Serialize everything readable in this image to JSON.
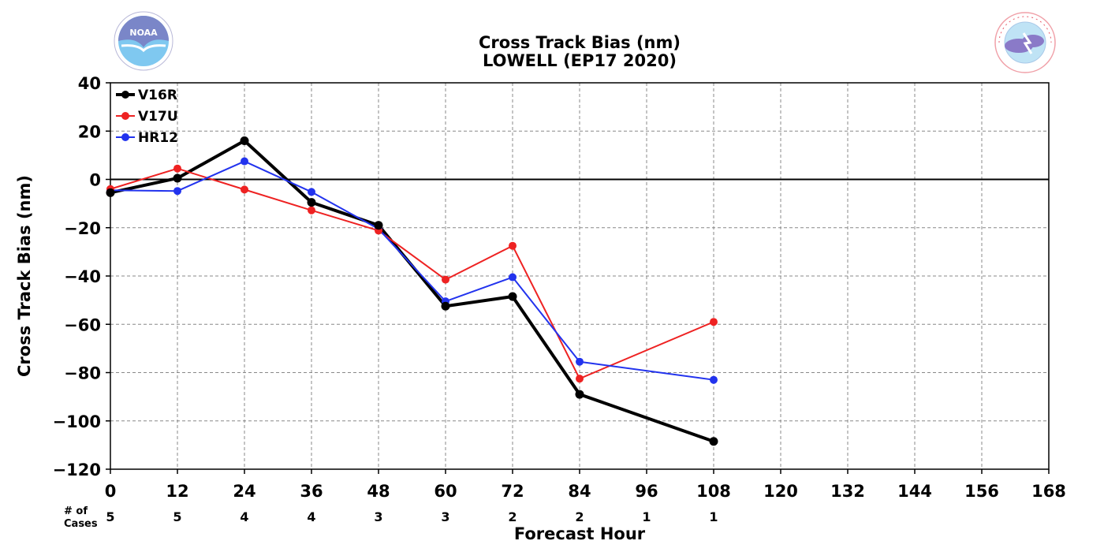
{
  "chart_data": {
    "type": "line",
    "title": "Cross Track Bias (nm)",
    "subtitle": "LOWELL (EP17 2020)",
    "xlabel": "Forecast Hour",
    "ylabel": "Cross Track Bias (nm)",
    "xlim": [
      0,
      168
    ],
    "ylim": [
      -120,
      40
    ],
    "x_ticks": [
      0,
      12,
      24,
      36,
      48,
      60,
      72,
      84,
      96,
      108,
      120,
      132,
      144,
      156,
      168
    ],
    "y_ticks": [
      40,
      20,
      0,
      -20,
      -40,
      -60,
      -80,
      -100,
      -120
    ],
    "x_tick_labels": [
      "0",
      "12",
      "24",
      "36",
      "48",
      "60",
      "72",
      "84",
      "96",
      "108",
      "120",
      "132",
      "144",
      "156",
      "168"
    ],
    "y_tick_labels": [
      "40",
      "20",
      "0",
      "−20",
      "−40",
      "−60",
      "−80",
      "−100",
      "−120"
    ],
    "grid": true,
    "legend_position": "top-left",
    "cases_label_line1": "# of",
    "cases_label_line2": "Cases",
    "cases": [
      {
        "x": 0,
        "n": "5"
      },
      {
        "x": 12,
        "n": "5"
      },
      {
        "x": 24,
        "n": "4"
      },
      {
        "x": 36,
        "n": "4"
      },
      {
        "x": 48,
        "n": "3"
      },
      {
        "x": 60,
        "n": "3"
      },
      {
        "x": 72,
        "n": "2"
      },
      {
        "x": 84,
        "n": "2"
      },
      {
        "x": 96,
        "n": "1"
      },
      {
        "x": 108,
        "n": "1"
      }
    ],
    "series": [
      {
        "name": "V16R",
        "color": "#000000",
        "x": [
          0,
          12,
          24,
          36,
          48,
          60,
          72,
          84,
          108
        ],
        "values": [
          -5.5,
          0.5,
          16,
          -9.5,
          -19,
          -52.5,
          -48.5,
          -89,
          -108.5
        ]
      },
      {
        "name": "V17U",
        "color": "#ee2222",
        "x": [
          0,
          12,
          24,
          36,
          48,
          60,
          72,
          84,
          108
        ],
        "values": [
          -4,
          4.5,
          -4.2,
          -12.8,
          -21.2,
          -41.5,
          -27.5,
          -82.5,
          -59
        ]
      },
      {
        "name": "HR12",
        "color": "#2233ee",
        "x": [
          0,
          12,
          24,
          36,
          48,
          60,
          72,
          84,
          108
        ],
        "values": [
          -4.5,
          -4.8,
          7.5,
          -5.2,
          -20.5,
          -50.5,
          -40.5,
          -75.5,
          -83
        ]
      }
    ]
  },
  "logos": {
    "left": {
      "name": "NOAA",
      "text": "NOAA",
      "color": "#7fc8f0"
    },
    "right": {
      "name": "National Weather Service",
      "text": "NATIONAL WEATHER SERVICE",
      "color": "#e85a6a"
    }
  }
}
